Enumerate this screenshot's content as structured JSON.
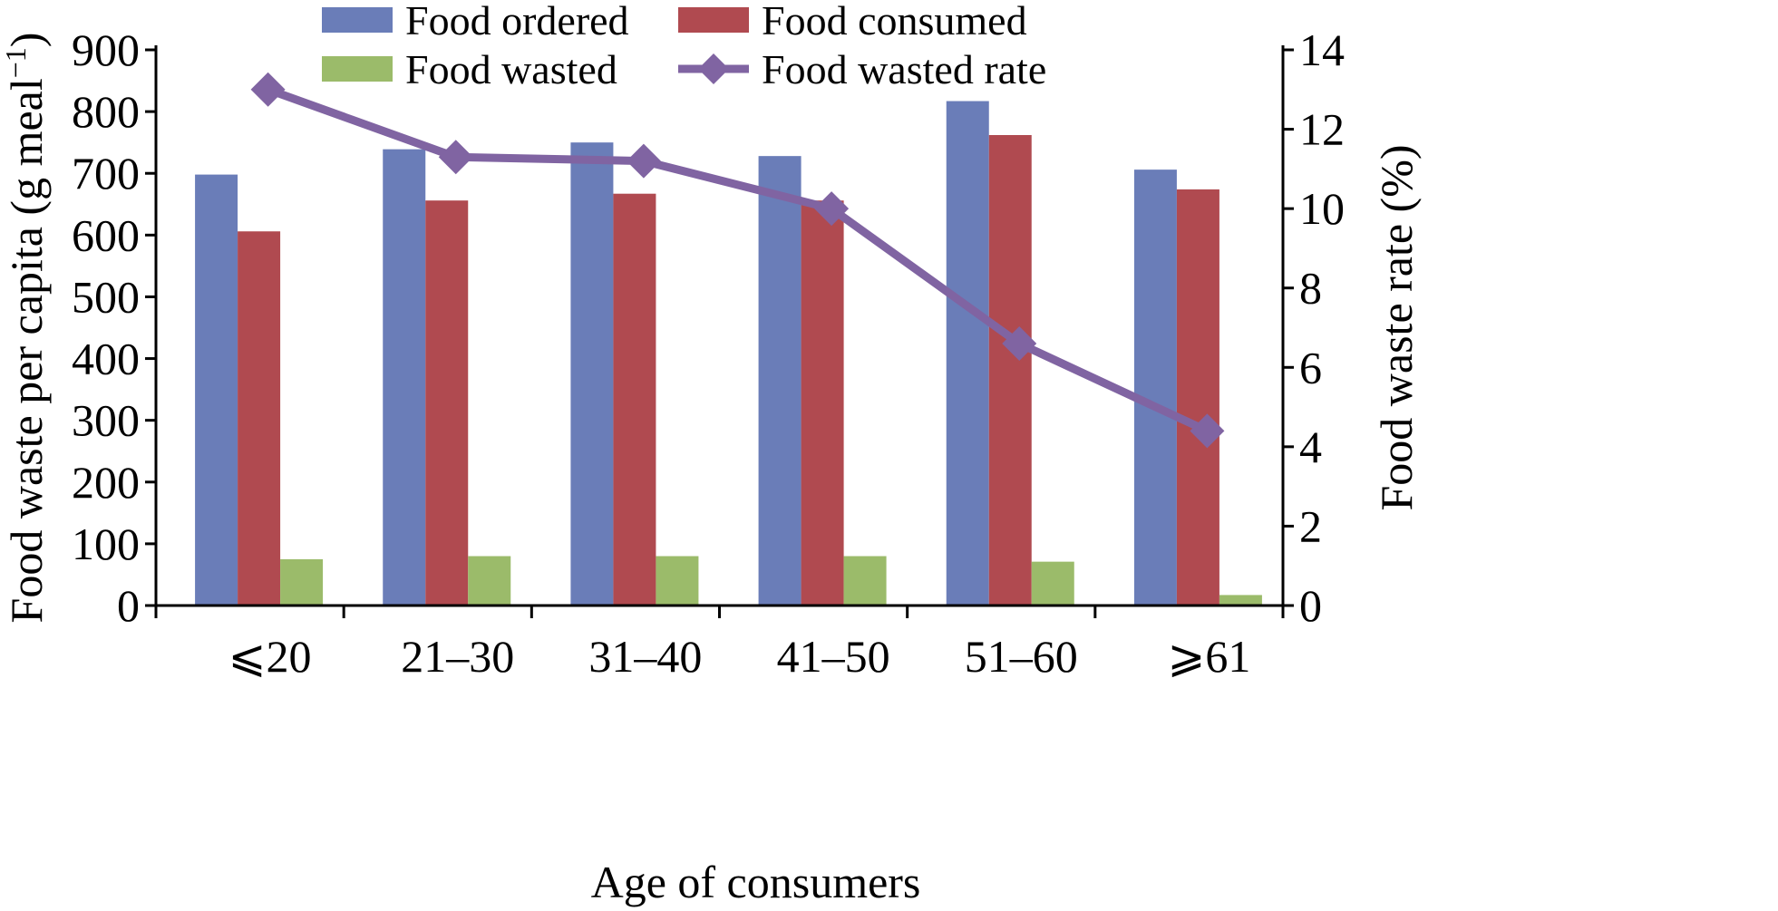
{
  "chart_data": {
    "type": "bar",
    "xlabel": "Age of consumers",
    "ylabel": "Food waste per capita (g meal",
    "ylabel_sup": "−1",
    "ylabel_close": ")",
    "y2label": "Food waste rate (%)",
    "ylim": [
      0,
      900
    ],
    "y2lim": [
      0,
      14
    ],
    "yticks": [
      0,
      100,
      200,
      300,
      400,
      500,
      600,
      700,
      800,
      900
    ],
    "y2ticks": [
      0,
      2,
      4,
      6,
      8,
      10,
      12,
      14
    ],
    "categories": [
      "⩽20",
      "21–30",
      "31–40",
      "41–50",
      "51–60",
      "⩾61"
    ],
    "series": [
      {
        "name": "Food ordered",
        "type": "bar",
        "axis": "left",
        "color": "#6a7db8",
        "values": [
          698,
          739,
          750,
          728,
          817,
          706
        ]
      },
      {
        "name": "Food consumed",
        "type": "bar",
        "axis": "left",
        "color": "#b04a50",
        "values": [
          606,
          656,
          667,
          656,
          762,
          674
        ]
      },
      {
        "name": "Food wasted",
        "type": "bar",
        "axis": "left",
        "color": "#9bbb6a",
        "values": [
          75,
          80,
          80,
          80,
          71,
          17
        ]
      },
      {
        "name": "Food wasted rate",
        "type": "line",
        "axis": "right",
        "color": "#8064a2",
        "values": [
          13.0,
          11.3,
          11.2,
          10.0,
          6.6,
          4.4
        ]
      }
    ],
    "legend_position": "top",
    "grid": false
  }
}
